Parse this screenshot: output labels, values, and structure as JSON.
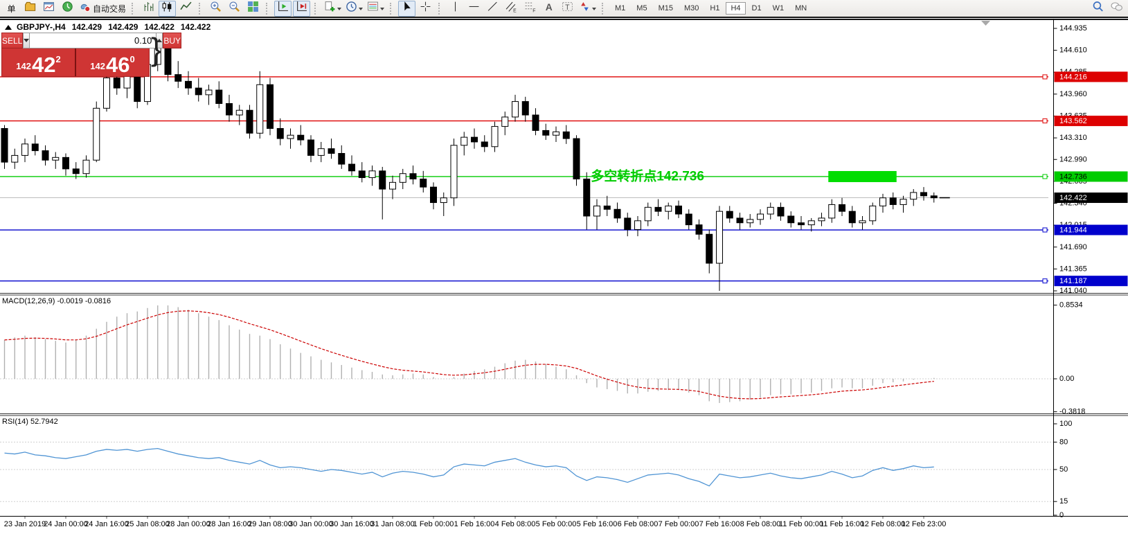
{
  "toolbar": {
    "new_order_label": "单",
    "autotrading_label": "自动交易",
    "icon_letters": {
      "text": "A",
      "label": "T",
      "channel": "E",
      "fibo": "F"
    },
    "timeframes": [
      "M1",
      "M5",
      "M15",
      "M30",
      "H1",
      "H4",
      "D1",
      "W1",
      "MN"
    ],
    "active_timeframe": "H4"
  },
  "quote_header": {
    "symbol": "GBPJPY-,H4",
    "open": "142.429",
    "high": "142.429",
    "low": "142.422",
    "close": "142.422"
  },
  "trade_panel": {
    "sell_label": "SELL",
    "buy_label": "BUY",
    "volume": "0.10",
    "sell_price_main": "142",
    "sell_price_big": "42",
    "sell_price_sup": "2",
    "buy_price_main": "142",
    "buy_price_big": "46",
    "buy_price_sup": "0",
    "collapse_glyph": "}"
  },
  "chart_data": [
    {
      "type": "candlestick",
      "title": "GBPJPY-,H4",
      "ylim": [
        141.04,
        144.935
      ],
      "yticks": [
        "144.935",
        "144.610",
        "144.285",
        "143.960",
        "143.635",
        "143.310",
        "142.990",
        "142.665",
        "142.340",
        "142.015",
        "141.690",
        "141.365",
        "141.040"
      ],
      "x_labels": [
        "23 Jan 2019",
        "24 Jan 00:00",
        "24 Jan 16:00",
        "25 Jan 08:00",
        "28 Jan 00:00",
        "28 Jan 16:00",
        "29 Jan 08:00",
        "30 Jan 00:00",
        "30 Jan 16:00",
        "31 Jan 08:00",
        "1 Feb 00:00",
        "1 Feb 16:00",
        "4 Feb 08:00",
        "5 Feb 00:00",
        "5 Feb 16:00",
        "6 Feb 08:00",
        "7 Feb 00:00",
        "7 Feb 16:00",
        "8 Feb 08:00",
        "11 Feb 00:00",
        "11 Feb 16:00",
        "12 Feb 08:00",
        "12 Feb 23:00"
      ],
      "x_label_every": 4,
      "candles": [
        [
          143.45,
          143.5,
          142.85,
          142.95
        ],
        [
          142.95,
          143.15,
          142.85,
          143.05
        ],
        [
          143.05,
          143.3,
          142.95,
          143.22
        ],
        [
          143.22,
          143.35,
          143.05,
          143.12
        ],
        [
          143.12,
          143.2,
          142.9,
          142.98
        ],
        [
          142.98,
          143.1,
          142.85,
          143.02
        ],
        [
          143.02,
          143.08,
          142.75,
          142.85
        ],
        [
          142.85,
          142.95,
          142.7,
          142.78
        ],
        [
          142.78,
          143.05,
          142.72,
          142.98
        ],
        [
          142.98,
          143.85,
          142.95,
          143.75
        ],
        [
          143.75,
          144.3,
          143.7,
          144.2
        ],
        [
          144.2,
          144.5,
          143.95,
          144.05
        ],
        [
          144.05,
          144.35,
          143.9,
          144.28
        ],
        [
          144.28,
          144.4,
          143.75,
          143.85
        ],
        [
          143.85,
          144.45,
          143.8,
          144.4
        ],
        [
          144.4,
          144.78,
          144.3,
          144.72
        ],
        [
          144.72,
          144.85,
          144.15,
          144.25
        ],
        [
          144.25,
          144.45,
          144.05,
          144.15
        ],
        [
          144.15,
          144.3,
          143.95,
          144.05
        ],
        [
          144.05,
          144.2,
          143.85,
          143.95
        ],
        [
          143.95,
          144.1,
          143.8,
          144.02
        ],
        [
          144.02,
          144.15,
          143.75,
          143.82
        ],
        [
          143.82,
          143.95,
          143.55,
          143.65
        ],
        [
          143.65,
          143.8,
          143.5,
          143.72
        ],
        [
          143.72,
          143.8,
          143.3,
          143.38
        ],
        [
          143.38,
          144.3,
          143.3,
          144.1
        ],
        [
          144.1,
          144.2,
          143.35,
          143.45
        ],
        [
          143.45,
          143.6,
          143.2,
          143.3
        ],
        [
          143.3,
          143.45,
          143.15,
          143.35
        ],
        [
          143.35,
          143.5,
          143.2,
          143.28
        ],
        [
          143.28,
          143.35,
          142.95,
          143.05
        ],
        [
          143.05,
          143.25,
          142.95,
          143.15
        ],
        [
          143.15,
          143.3,
          143.0,
          143.08
        ],
        [
          143.08,
          143.2,
          142.85,
          142.92
        ],
        [
          142.92,
          143.05,
          142.75,
          142.82
        ],
        [
          142.82,
          142.95,
          142.65,
          142.72
        ],
        [
          142.72,
          142.9,
          142.6,
          142.82
        ],
        [
          142.82,
          142.88,
          142.1,
          142.55
        ],
        [
          142.55,
          142.75,
          142.4,
          142.65
        ],
        [
          142.65,
          142.85,
          142.55,
          142.78
        ],
        [
          142.78,
          142.9,
          142.62,
          142.7
        ],
        [
          142.7,
          142.82,
          142.5,
          142.58
        ],
        [
          142.58,
          142.65,
          142.25,
          142.35
        ],
        [
          142.35,
          142.5,
          142.15,
          142.42
        ],
        [
          142.42,
          143.3,
          142.3,
          143.2
        ],
        [
          143.2,
          143.4,
          143.05,
          143.32
        ],
        [
          143.32,
          143.45,
          143.15,
          143.25
        ],
        [
          143.25,
          143.35,
          143.1,
          143.18
        ],
        [
          143.18,
          143.55,
          143.1,
          143.48
        ],
        [
          143.48,
          143.7,
          143.35,
          143.62
        ],
        [
          143.62,
          143.95,
          143.55,
          143.85
        ],
        [
          143.85,
          143.92,
          143.55,
          143.65
        ],
        [
          143.65,
          143.75,
          143.35,
          143.42
        ],
        [
          143.42,
          143.52,
          143.28,
          143.35
        ],
        [
          143.35,
          143.48,
          143.25,
          143.4
        ],
        [
          143.4,
          143.5,
          143.22,
          143.3
        ],
        [
          143.3,
          143.35,
          142.6,
          142.7
        ],
        [
          142.7,
          142.8,
          141.95,
          142.15
        ],
        [
          142.15,
          142.4,
          141.95,
          142.3
        ],
        [
          142.3,
          142.45,
          142.15,
          142.25
        ],
        [
          142.25,
          142.35,
          142.05,
          142.12
        ],
        [
          142.12,
          142.2,
          141.85,
          141.95
        ],
        [
          141.95,
          142.15,
          141.85,
          142.08
        ],
        [
          142.08,
          142.35,
          142.0,
          142.28
        ],
        [
          142.28,
          142.4,
          142.15,
          142.22
        ],
        [
          142.22,
          142.35,
          142.1,
          142.3
        ],
        [
          142.3,
          142.38,
          142.12,
          142.18
        ],
        [
          142.18,
          142.25,
          141.95,
          142.02
        ],
        [
          142.02,
          142.1,
          141.8,
          141.88
        ],
        [
          141.88,
          141.95,
          141.3,
          141.45
        ],
        [
          141.45,
          142.3,
          141.04,
          142.22
        ],
        [
          142.22,
          142.3,
          142.05,
          142.12
        ],
        [
          142.12,
          142.2,
          141.95,
          142.05
        ],
        [
          142.05,
          142.18,
          141.98,
          142.1
        ],
        [
          142.1,
          142.25,
          142.02,
          142.18
        ],
        [
          142.18,
          142.35,
          142.1,
          142.28
        ],
        [
          142.28,
          142.35,
          142.08,
          142.15
        ],
        [
          142.15,
          142.22,
          141.98,
          142.05
        ],
        [
          142.05,
          142.15,
          141.95,
          142.02
        ],
        [
          142.02,
          142.12,
          141.92,
          142.08
        ],
        [
          142.08,
          142.2,
          142.0,
          142.12
        ],
        [
          142.12,
          142.4,
          142.05,
          142.32
        ],
        [
          142.32,
          142.42,
          142.15,
          142.22
        ],
        [
          142.22,
          142.3,
          141.98,
          142.05
        ],
        [
          142.05,
          142.15,
          141.95,
          142.08
        ],
        [
          142.08,
          142.35,
          142.02,
          142.3
        ],
        [
          142.3,
          142.48,
          142.2,
          142.42
        ],
        [
          142.42,
          142.5,
          142.25,
          142.32
        ],
        [
          142.32,
          142.45,
          142.2,
          142.4
        ],
        [
          142.4,
          142.55,
          142.3,
          142.5
        ],
        [
          142.5,
          142.58,
          142.38,
          142.45
        ],
        [
          142.45,
          142.5,
          142.35,
          142.42
        ]
      ],
      "levels": [
        {
          "price": 144.216,
          "color": "#dd0000",
          "text_color": "#ffffff"
        },
        {
          "price": 143.562,
          "color": "#dd0000",
          "text_color": "#ffffff"
        },
        {
          "price": 142.736,
          "color": "#00cc00",
          "text_color": "#000000"
        },
        {
          "price": 141.944,
          "color": "#0000cc",
          "text_color": "#ffffff"
        },
        {
          "price": 141.187,
          "color": "#0000cc",
          "text_color": "#ffffff"
        }
      ],
      "current_price": {
        "value": "142.422",
        "price": 142.422
      },
      "annotation": {
        "text": "多空转折点142.736",
        "color": "#00cc00",
        "price": 142.736,
        "anchor_candle": 57
      },
      "highlight_rect": {
        "from_candle": 81,
        "to_candle": 87,
        "price": 142.736,
        "color": "#00dd00",
        "height": 16
      }
    },
    {
      "type": "bar",
      "label": "MACD(12,26,9) -0.0019 -0.0816",
      "ylim": [
        -0.3818,
        0.8534
      ],
      "yticks": [
        "0.8534",
        "0.00",
        "-0.3818"
      ],
      "bar_color": "#b0b0b0",
      "signal_color": "#cc0000",
      "values": [
        0.45,
        0.48,
        0.5,
        0.48,
        0.46,
        0.44,
        0.42,
        0.45,
        0.5,
        0.58,
        0.66,
        0.72,
        0.76,
        0.78,
        0.82,
        0.85,
        0.85,
        0.83,
        0.8,
        0.76,
        0.72,
        0.68,
        0.62,
        0.57,
        0.52,
        0.5,
        0.46,
        0.4,
        0.35,
        0.3,
        0.26,
        0.22,
        0.19,
        0.16,
        0.13,
        0.1,
        0.08,
        0.05,
        0.04,
        0.05,
        0.06,
        0.05,
        0.02,
        0.0,
        0.02,
        0.06,
        0.09,
        0.11,
        0.14,
        0.18,
        0.21,
        0.22,
        0.2,
        0.17,
        0.14,
        0.11,
        0.04,
        -0.05,
        -0.1,
        -0.12,
        -0.14,
        -0.17,
        -0.17,
        -0.15,
        -0.14,
        -0.13,
        -0.13,
        -0.16,
        -0.19,
        -0.26,
        -0.28,
        -0.27,
        -0.26,
        -0.24,
        -0.22,
        -0.19,
        -0.18,
        -0.18,
        -0.17,
        -0.16,
        -0.14,
        -0.11,
        -0.1,
        -0.11,
        -0.11,
        -0.08,
        -0.05,
        -0.04,
        -0.03,
        -0.01,
        0.0,
        0.01
      ]
    },
    {
      "type": "line",
      "label": "RSI(14) 52.7942",
      "ylim": [
        0,
        100
      ],
      "yticks": [
        "100",
        "80",
        "50",
        "15",
        "0"
      ],
      "grid_levels": [
        80,
        50,
        15
      ],
      "color": "#4f94d4",
      "values": [
        68,
        67,
        69,
        66,
        65,
        63,
        62,
        64,
        66,
        70,
        72,
        71,
        72,
        70,
        72,
        73,
        70,
        67,
        65,
        63,
        62,
        63,
        60,
        58,
        56,
        60,
        55,
        52,
        53,
        52,
        50,
        48,
        50,
        49,
        47,
        45,
        47,
        42,
        46,
        48,
        47,
        45,
        42,
        44,
        53,
        56,
        55,
        54,
        58,
        60,
        62,
        58,
        55,
        53,
        54,
        52,
        43,
        38,
        42,
        41,
        39,
        36,
        40,
        44,
        45,
        46,
        44,
        40,
        37,
        32,
        45,
        43,
        41,
        42,
        44,
        46,
        43,
        41,
        40,
        42,
        44,
        48,
        45,
        41,
        43,
        49,
        52,
        49,
        51,
        54,
        52,
        52.79
      ]
    }
  ]
}
